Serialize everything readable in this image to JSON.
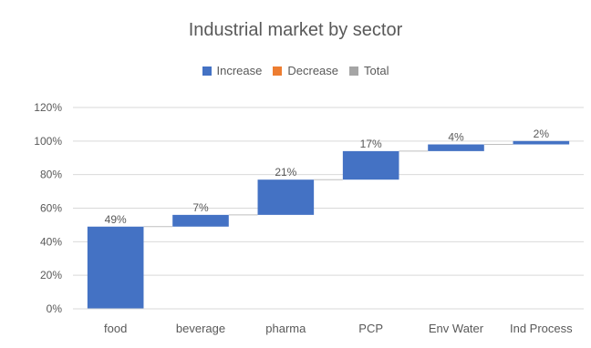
{
  "chart_data": {
    "type": "waterfall",
    "title": "Industrial market by sector",
    "legend": {
      "position": "top",
      "items": [
        {
          "name": "Increase",
          "color": "#4472c4"
        },
        {
          "name": "Decrease",
          "color": "#ed7d31"
        },
        {
          "name": "Total",
          "color": "#a5a5a5"
        }
      ]
    },
    "categories": [
      "food",
      "beverage",
      "pharma",
      "PCP",
      "Env Water",
      "Ind Process"
    ],
    "values": [
      49,
      7,
      21,
      17,
      4,
      2
    ],
    "data_labels": [
      "49%",
      "7%",
      "21%",
      "17%",
      "4%",
      "2%"
    ],
    "ylim": [
      0,
      120
    ],
    "y_ticks": [
      0,
      20,
      40,
      60,
      80,
      100,
      120
    ],
    "y_tick_labels": [
      "0%",
      "20%",
      "40%",
      "60%",
      "80%",
      "100%",
      "120%"
    ],
    "xlabel": "",
    "ylabel": "",
    "grid": true,
    "colors": {
      "increase": "#4472c4",
      "decrease": "#ed7d31",
      "total": "#a5a5a5",
      "grid": "#d9d9d9",
      "text": "#595959",
      "connector": "#bfbfbf"
    }
  }
}
